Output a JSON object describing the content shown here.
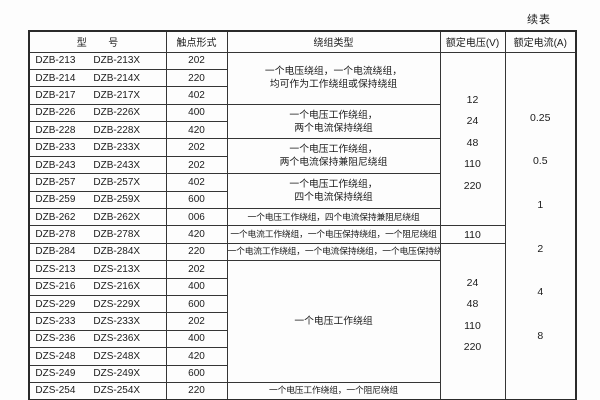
{
  "continued_label": "续表",
  "headers": [
    "型　　号",
    "触点形式",
    "绕组类型",
    "额定电压(V)",
    "额定电流(A)"
  ],
  "rows": [
    {
      "model": [
        "DZB-213",
        "DZB-213X"
      ],
      "contact": "202"
    },
    {
      "model": [
        "DZB-214",
        "DZB-214X"
      ],
      "contact": "220"
    },
    {
      "model": [
        "DZB-217",
        "DZB-217X"
      ],
      "contact": "402"
    },
    {
      "model": [
        "DZB-226",
        "DZB-226X"
      ],
      "contact": "400"
    },
    {
      "model": [
        "DZB-228",
        "DZB-228X"
      ],
      "contact": "420"
    },
    {
      "model": [
        "DZB-233",
        "DZB-233X"
      ],
      "contact": "202"
    },
    {
      "model": [
        "DZB-243",
        "DZB-243X"
      ],
      "contact": "202"
    },
    {
      "model": [
        "DZB-257",
        "DZB-257X"
      ],
      "contact": "402"
    },
    {
      "model": [
        "DZB-259",
        "DZB-259X"
      ],
      "contact": "600"
    },
    {
      "model": [
        "DZB-262",
        "DZB-262X"
      ],
      "contact": "006"
    },
    {
      "model": [
        "DZB-278",
        "DZB-278X"
      ],
      "contact": "420"
    },
    {
      "model": [
        "DZB-284",
        "DZB-284X"
      ],
      "contact": "220"
    },
    {
      "model": [
        "DZS-213",
        "DZS-213X"
      ],
      "contact": "202"
    },
    {
      "model": [
        "DZS-216",
        "DZS-216X"
      ],
      "contact": "400"
    },
    {
      "model": [
        "DZS-229",
        "DZS-229X"
      ],
      "contact": "600"
    },
    {
      "model": [
        "DZS-233",
        "DZS-233X"
      ],
      "contact": "202"
    },
    {
      "model": [
        "DZS-236",
        "DZS-236X"
      ],
      "contact": "400"
    },
    {
      "model": [
        "DZS-248",
        "DZS-248X"
      ],
      "contact": "420"
    },
    {
      "model": [
        "DZS-249",
        "DZS-249X"
      ],
      "contact": "600"
    },
    {
      "model": [
        "DZS-254",
        "DZS-254X"
      ],
      "contact": "220"
    }
  ],
  "winding_cells": [
    {
      "row": 0,
      "span": 3,
      "lines": [
        "一个电压绕组，一个电流绕组，",
        "均可作为工作绕组或保持绕组"
      ]
    },
    {
      "row": 3,
      "span": 2,
      "lines": [
        "一个电压工作绕组，",
        "两个电流保持绕组"
      ]
    },
    {
      "row": 5,
      "span": 2,
      "lines": [
        "一个电压工作绕组，",
        "两个电流保持兼阻尼绕组"
      ]
    },
    {
      "row": 7,
      "span": 2,
      "lines": [
        "一个电压工作绕组，",
        "四个电流保持绕组"
      ]
    },
    {
      "row": 9,
      "span": 1,
      "lines": [
        "一个电压工作绕组，四个电流保持兼阻尼绕组"
      ]
    },
    {
      "row": 10,
      "span": 1,
      "lines": [
        "一个电流工作绕组，一个电压保持绕组，一个阻尼绕组"
      ]
    },
    {
      "row": 11,
      "span": 1,
      "lines": [
        "一个电流工作绕组，一个电流保持绕组，一个电压保持绕组"
      ]
    },
    {
      "row": 12,
      "span": 7,
      "lines": [
        "一个电压工作绕组"
      ]
    },
    {
      "row": 19,
      "span": 1,
      "lines": [
        "一个电压工作绕组，一个阻尼绕组"
      ]
    }
  ],
  "voltage_cells": [
    {
      "row": 0,
      "span": 10,
      "values": [
        "12",
        "24",
        "48",
        "110",
        "220"
      ]
    },
    {
      "row": 10,
      "span": 1,
      "values": [
        "110"
      ]
    },
    {
      "row": 11,
      "span": 9,
      "values": [
        "24",
        "48",
        "110",
        "220"
      ]
    }
  ],
  "current_cells": [
    {
      "row": 0,
      "span": 20,
      "values": [
        "0.25",
        "0.5",
        "1",
        "2",
        "4",
        "8"
      ]
    }
  ]
}
